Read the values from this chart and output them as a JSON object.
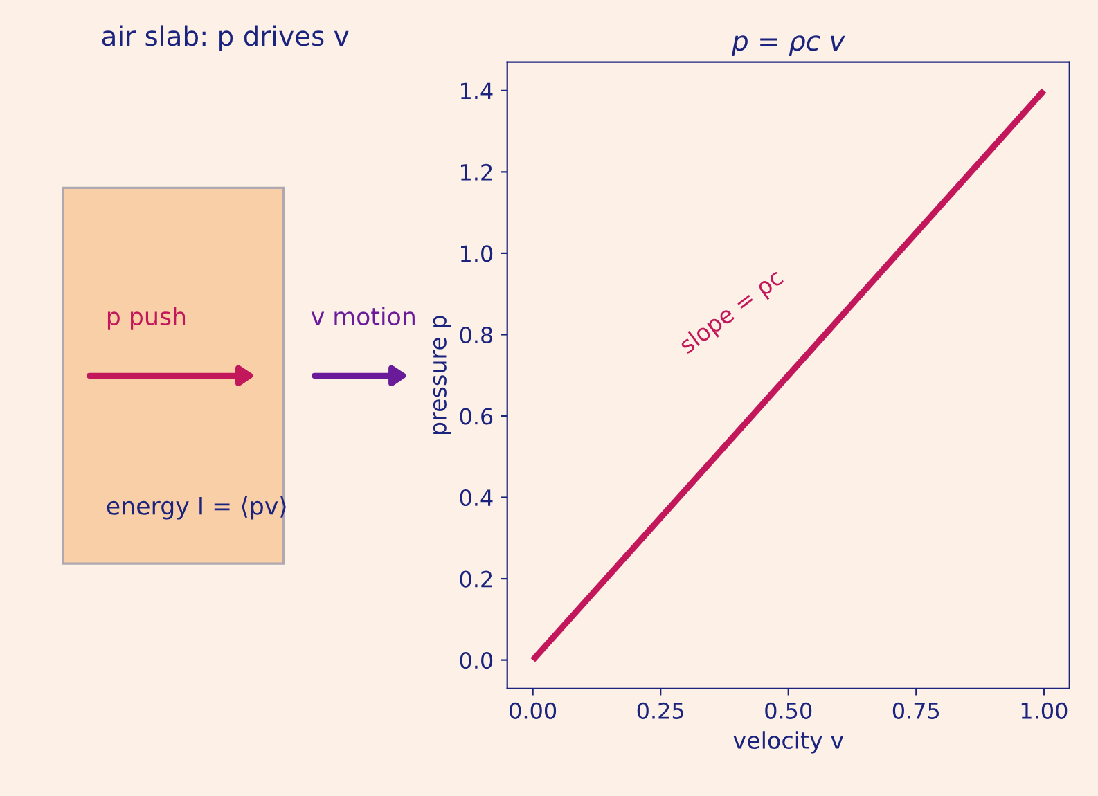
{
  "chart_data": [
    {
      "type": "other",
      "title": "air slab: p drives v",
      "annotations": [
        "p push",
        "v motion",
        "energy I = ⟨pv⟩"
      ]
    },
    {
      "type": "line",
      "title": "p = ρc v",
      "xlabel": "velocity v",
      "ylabel": "pressure p",
      "x": [
        0,
        1
      ],
      "series": [
        {
          "color": "#c2185b",
          "values": [
            0,
            1.4
          ]
        }
      ],
      "xlim": [
        -0.05,
        1.05
      ],
      "ylim": [
        -0.07,
        1.47
      ],
      "xticks": [
        {
          "value": 0,
          "label": "0.00"
        },
        0.25,
        {
          "value": 0.5,
          "label": "0.50"
        },
        0.75,
        {
          "value": 1,
          "label": "1.00"
        }
      ],
      "yticks": [
        {
          "value": 0,
          "label": "0.0"
        },
        0.2,
        0.4,
        0.6,
        0.8,
        {
          "value": 1,
          "label": "1.0"
        },
        1.2,
        1.4
      ],
      "annotations": [
        "slope = ρc"
      ],
      "grid": false,
      "legend": false,
      "marker": "none",
      "line_style": "solid"
    }
  ]
}
